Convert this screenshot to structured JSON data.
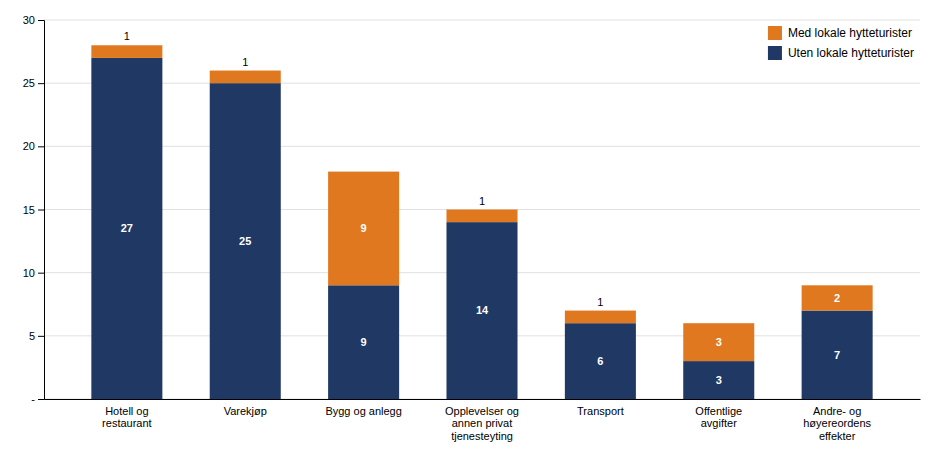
{
  "chart_data": {
    "type": "bar",
    "stacked": true,
    "categories": [
      "Hotell og\nrestaurant",
      "Varekjøp",
      "Bygg og anlegg",
      "Opplevelser og\nannen privat\ntjenesteyting",
      "Transport",
      "Offentlige\navgifter",
      "Andre- og\nhøyereordens\neffekter"
    ],
    "series": [
      {
        "name": "Uten lokale hytteturister",
        "color": "#1F3864",
        "values": [
          27,
          25,
          9,
          14,
          6,
          3,
          7
        ]
      },
      {
        "name": "Med lokale hytteturister",
        "color": "#E07820",
        "values": [
          1,
          1,
          9,
          1,
          1,
          3,
          2
        ]
      }
    ],
    "ylim": [
      0,
      30
    ],
    "yticks": [
      {
        "value": 0,
        "label": "-"
      },
      5,
      10,
      15,
      20,
      25,
      30
    ],
    "grid": true,
    "legend": "upper right",
    "data_labels": true
  }
}
